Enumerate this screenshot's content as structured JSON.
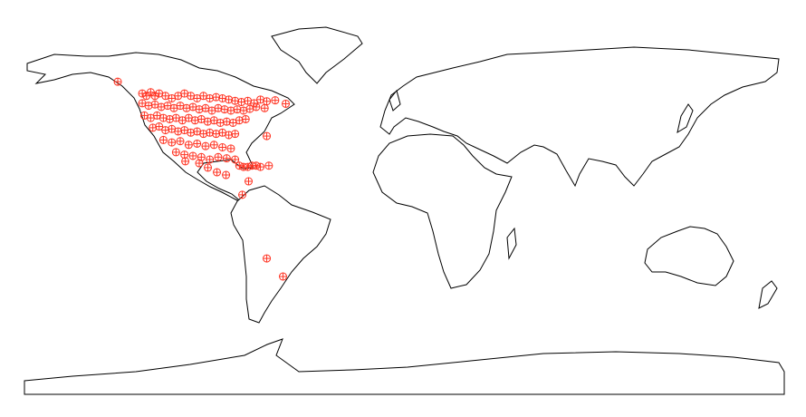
{
  "map": {
    "points": {
      "color": "#ff3322",
      "lon": [
        -124,
        -122,
        -120,
        -118,
        -116,
        -113,
        -110,
        -107,
        -104,
        -101,
        -98,
        -95,
        -92,
        -89,
        -86,
        -83,
        -80,
        -77,
        -74,
        -71,
        -68,
        -65,
        -61,
        -56,
        -124,
        -121,
        -118,
        -115,
        -112,
        -109,
        -106,
        -103,
        -100,
        -97,
        -94,
        -91,
        -88,
        -85,
        -82,
        -79,
        -76,
        -73,
        -70,
        -66,
        -123,
        -120,
        -117,
        -114,
        -111,
        -108,
        -105,
        -102,
        -99,
        -96,
        -93,
        -90,
        -87,
        -84,
        -81,
        -78,
        -75,
        -119,
        -116,
        -113,
        -110,
        -107,
        -104,
        -101,
        -98,
        -95,
        -92,
        -89,
        -86,
        -83,
        -80,
        -114,
        -110,
        -106,
        -102,
        -98,
        -94,
        -90,
        -86,
        -82,
        -78,
        -74,
        -70,
        -108,
        -104,
        -100,
        -96,
        -92,
        -88,
        -84,
        -80,
        -76,
        -72,
        -68,
        -64,
        -135.6,
        -65,
        -97,
        -103.6,
        -92.9,
        -88.6,
        -84.3,
        -73.6,
        -76.6,
        -65,
        -57.3
      ],
      "lat": [
        47,
        46,
        47.5,
        46,
        47,
        46,
        45,
        46,
        47,
        46,
        45,
        46,
        45,
        45.5,
        45,
        44.5,
        44,
        43.5,
        44,
        43,
        44.5,
        43.8,
        44.2,
        42.8,
        43,
        42,
        42.5,
        41.5,
        42,
        41,
        42,
        41,
        41.5,
        40.5,
        41,
        40,
        41,
        40.5,
        40,
        40.5,
        40,
        40.7,
        41.5,
        41,
        38,
        37,
        38,
        37,
        36.5,
        37,
        36,
        37,
        36,
        36.5,
        35.5,
        36,
        35,
        35.5,
        35,
        36,
        36.5,
        33,
        33.5,
        32,
        32.5,
        31.5,
        32,
        31,
        31.5,
        30.5,
        31,
        30.5,
        31,
        30,
        30.5,
        28,
        27,
        27.5,
        26,
        26.5,
        25.5,
        26,
        25,
        24.5,
        17.5,
        17,
        17.5,
        23,
        22,
        21.5,
        21,
        20,
        21,
        20.5,
        20,
        17,
        17.5,
        17,
        17.5,
        51.8,
        29.6,
        18.5,
        19.3,
        16.7,
        14.8,
        13.7,
        11.1,
        5.6,
        -20.4,
        -27.8
      ]
    }
  }
}
